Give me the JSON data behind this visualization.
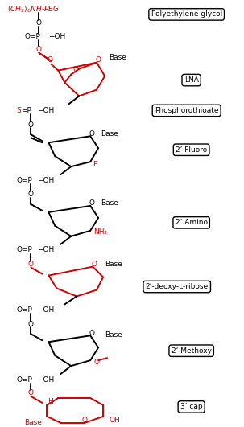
{
  "bg_color": "#ffffff",
  "black": "#000000",
  "red": "#cc0000",
  "labels": {
    "polyethylene": "Polyethylene glycol",
    "lna": "LNA",
    "phosphorothioate": "Phosphorothioate",
    "fluoro": "2’ Fluoro",
    "amino": "2’ Amino",
    "deoxy": "2’-deoxy-L-ribose",
    "methoxy": "2’ Methoxy",
    "cap": "3’ cap"
  }
}
